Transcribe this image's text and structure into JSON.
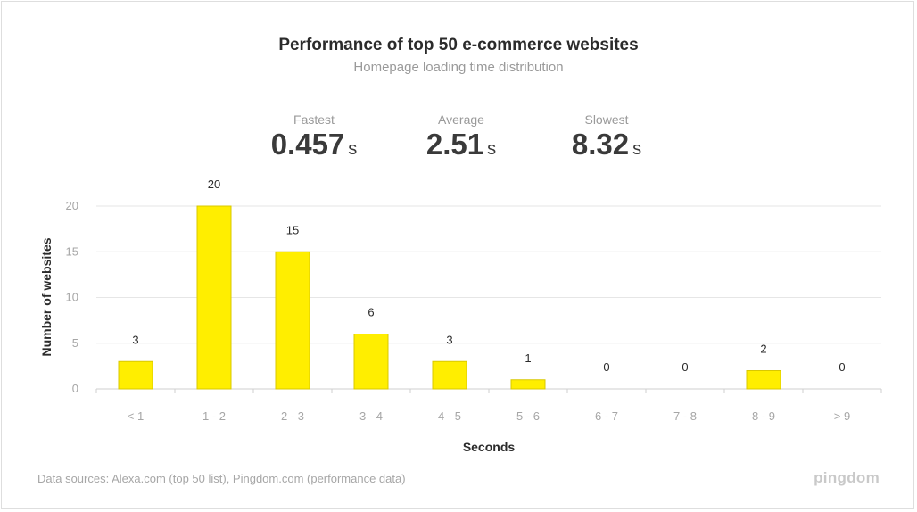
{
  "header": {
    "title": "Performance of top 50 e-commerce websites",
    "subtitle": "Homepage loading time distribution"
  },
  "stats": [
    {
      "label": "Fastest",
      "value": "0.457",
      "unit": "s"
    },
    {
      "label": "Average",
      "value": "2.51",
      "unit": "s"
    },
    {
      "label": "Slowest",
      "value": "8.32",
      "unit": "s"
    }
  ],
  "chart_data": {
    "type": "bar",
    "categories": [
      "< 1",
      "1 - 2",
      "2 - 3",
      "3 - 4",
      "4 - 5",
      "5 - 6",
      "6 - 7",
      "7 - 8",
      "8 - 9",
      "> 9"
    ],
    "values": [
      3,
      20,
      15,
      6,
      3,
      1,
      0,
      0,
      2,
      0
    ],
    "xlabel": "Seconds",
    "ylabel": "Number of websites",
    "ylim": [
      0,
      20
    ],
    "yticks": [
      0,
      5,
      10,
      15,
      20
    ],
    "grid": true,
    "bar_color": "#ffee00",
    "bar_border_color": "#d9c800"
  },
  "footer": {
    "sources": "Data sources: Alexa.com (top 50 list), Pingdom.com (performance data)",
    "logo": "pingdom"
  }
}
